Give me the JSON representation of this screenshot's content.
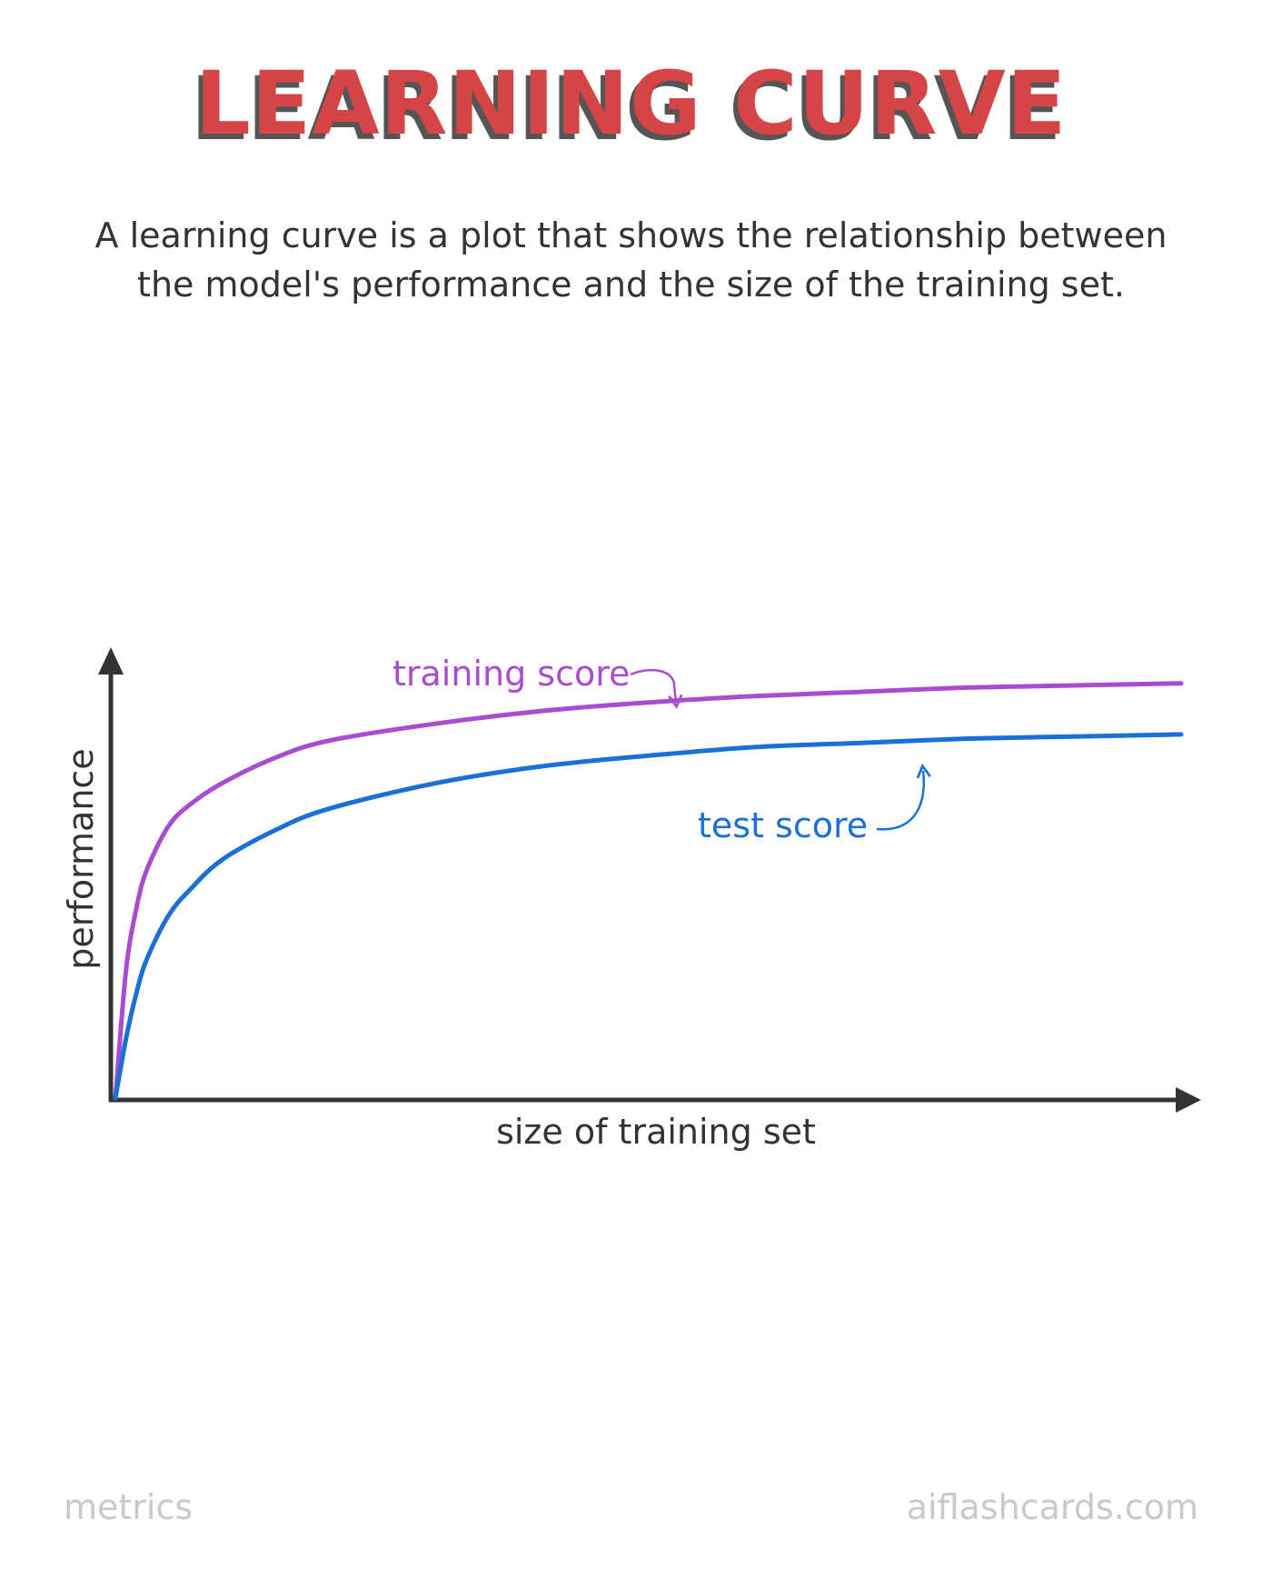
{
  "title": "LEARNING CURVE",
  "description": "A learning curve is a plot that shows the relationship between the model's performance and the size of the training set.",
  "footer": {
    "category": "metrics",
    "site": "aiflashcards.com"
  },
  "chart_data": {
    "type": "line",
    "xlabel": "size of training set",
    "ylabel": "performance",
    "xlim": [
      0,
      100
    ],
    "ylim": [
      0,
      100
    ],
    "series": [
      {
        "name": "training score",
        "color": "#a94cd2",
        "x": [
          0,
          1,
          2,
          3,
          5,
          7,
          10,
          15,
          20,
          30,
          40,
          50,
          60,
          70,
          80,
          90,
          100
        ],
        "values": [
          0,
          30,
          45,
          54,
          64,
          69,
          74,
          80,
          84,
          88,
          91,
          93,
          94.5,
          95.5,
          96.5,
          97,
          97.5
        ]
      },
      {
        "name": "test score",
        "color": "#1a6fd8",
        "x": [
          0,
          1,
          2,
          3,
          5,
          7,
          10,
          15,
          20,
          30,
          40,
          50,
          60,
          70,
          80,
          90,
          100
        ],
        "values": [
          0,
          14,
          25,
          33,
          43,
          49,
          56,
          63,
          68,
          74,
          78,
          80.5,
          82.5,
          83.5,
          84.5,
          85,
          85.5
        ]
      }
    ]
  }
}
